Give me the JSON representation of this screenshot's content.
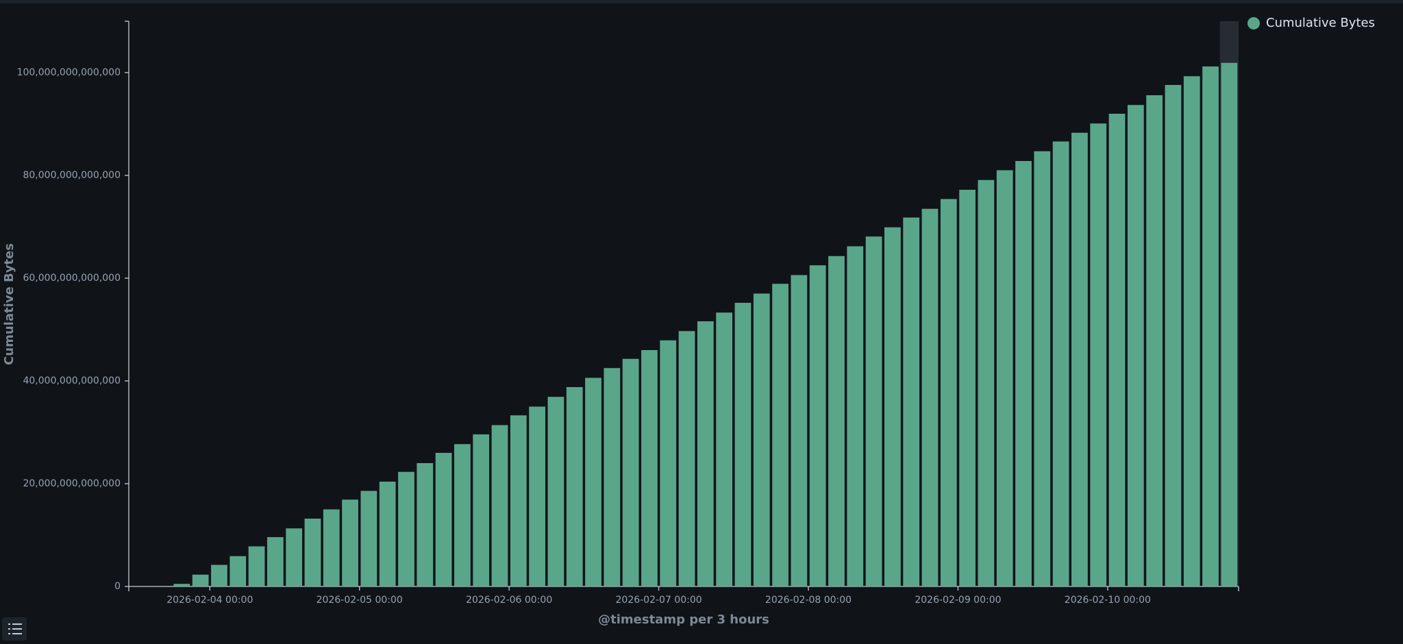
{
  "chart_data": {
    "type": "bar",
    "x_label": "@timestamp per 3 hours",
    "y_label": "Cumulative Bytes",
    "x": [
      "2026-02-03 18:00",
      "2026-02-03 21:00",
      "2026-02-04 00:00",
      "2026-02-04 03:00",
      "2026-02-04 06:00",
      "2026-02-04 09:00",
      "2026-02-04 12:00",
      "2026-02-04 15:00",
      "2026-02-04 18:00",
      "2026-02-04 21:00",
      "2026-02-05 00:00",
      "2026-02-05 03:00",
      "2026-02-05 06:00",
      "2026-02-05 09:00",
      "2026-02-05 12:00",
      "2026-02-05 15:00",
      "2026-02-05 18:00",
      "2026-02-05 21:00",
      "2026-02-06 00:00",
      "2026-02-06 03:00",
      "2026-02-06 06:00",
      "2026-02-06 09:00",
      "2026-02-06 12:00",
      "2026-02-06 15:00",
      "2026-02-06 18:00",
      "2026-02-06 21:00",
      "2026-02-07 00:00",
      "2026-02-07 03:00",
      "2026-02-07 06:00",
      "2026-02-07 09:00",
      "2026-02-07 12:00",
      "2026-02-07 15:00",
      "2026-02-07 18:00",
      "2026-02-07 21:00",
      "2026-02-08 00:00",
      "2026-02-08 03:00",
      "2026-02-08 06:00",
      "2026-02-08 09:00",
      "2026-02-08 12:00",
      "2026-02-08 15:00",
      "2026-02-08 18:00",
      "2026-02-08 21:00",
      "2026-02-09 00:00",
      "2026-02-09 03:00",
      "2026-02-09 06:00",
      "2026-02-09 09:00",
      "2026-02-09 12:00",
      "2026-02-09 15:00",
      "2026-02-09 18:00",
      "2026-02-09 21:00",
      "2026-02-10 00:00",
      "2026-02-10 03:00",
      "2026-02-10 06:00",
      "2026-02-10 09:00",
      "2026-02-10 12:00",
      "2026-02-10 15:00",
      "2026-02-10 18:00"
    ],
    "series": [
      {
        "name": "Cumulative Bytes",
        "color": "#5aa68b",
        "values": [
          500000000000,
          2300000000000,
          4200000000000,
          5900000000000,
          7800000000000,
          9600000000000,
          11300000000000,
          13200000000000,
          15000000000000,
          16900000000000,
          18600000000000,
          20400000000000,
          22300000000000,
          24000000000000,
          26000000000000,
          27700000000000,
          29600000000000,
          31400000000000,
          33300000000000,
          35000000000000,
          36900000000000,
          38800000000000,
          40600000000000,
          42500000000000,
          44300000000000,
          46000000000000,
          47900000000000,
          49700000000000,
          51600000000000,
          53300000000000,
          55200000000000,
          57000000000000,
          58900000000000,
          60600000000000,
          62500000000000,
          64300000000000,
          66200000000000,
          68100000000000,
          69900000000000,
          71800000000000,
          73500000000000,
          75400000000000,
          77200000000000,
          79100000000000,
          81000000000000,
          82800000000000,
          84700000000000,
          86600000000000,
          88300000000000,
          90100000000000,
          92000000000000,
          93700000000000,
          95600000000000,
          97600000000000,
          99300000000000,
          101200000000000,
          101900000000000
        ]
      }
    ],
    "xlim": [
      "2026-02-03 11:00",
      "2026-02-10 21:00"
    ],
    "xticks": [
      "2026-02-04 00:00",
      "2026-02-05 00:00",
      "2026-02-06 00:00",
      "2026-02-07 00:00",
      "2026-02-08 00:00",
      "2026-02-09 00:00",
      "2026-02-10 00:00"
    ],
    "ylim": [
      0,
      110000000000000
    ],
    "yticks": [
      0,
      {
        "value": 20000000000000,
        "label": "20,000,000,000,000"
      },
      {
        "value": 40000000000000,
        "label": "40,000,000,000,000"
      },
      {
        "value": 60000000000000,
        "label": "60,000,000,000,000"
      },
      {
        "value": 80000000000000,
        "label": "80,000,000,000,000"
      },
      {
        "value": 100000000000000,
        "label": "100,000,000,000,000"
      }
    ],
    "legend": "top-right"
  }
}
